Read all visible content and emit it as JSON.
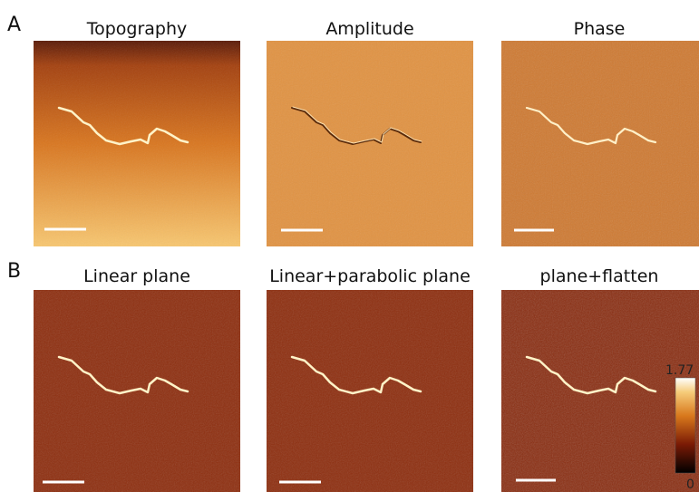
{
  "panels": [
    {
      "label": "A",
      "images": [
        {
          "title": "Topography"
        },
        {
          "title": "Amplitude"
        },
        {
          "title": "Phase"
        }
      ]
    },
    {
      "label": "B",
      "images": [
        {
          "title": "Linear plane"
        },
        {
          "title": "Linear+parabolic plane"
        },
        {
          "title": "plane+flatten"
        }
      ]
    }
  ],
  "colorbar": {
    "max": 1.77,
    "min": 0
  }
}
